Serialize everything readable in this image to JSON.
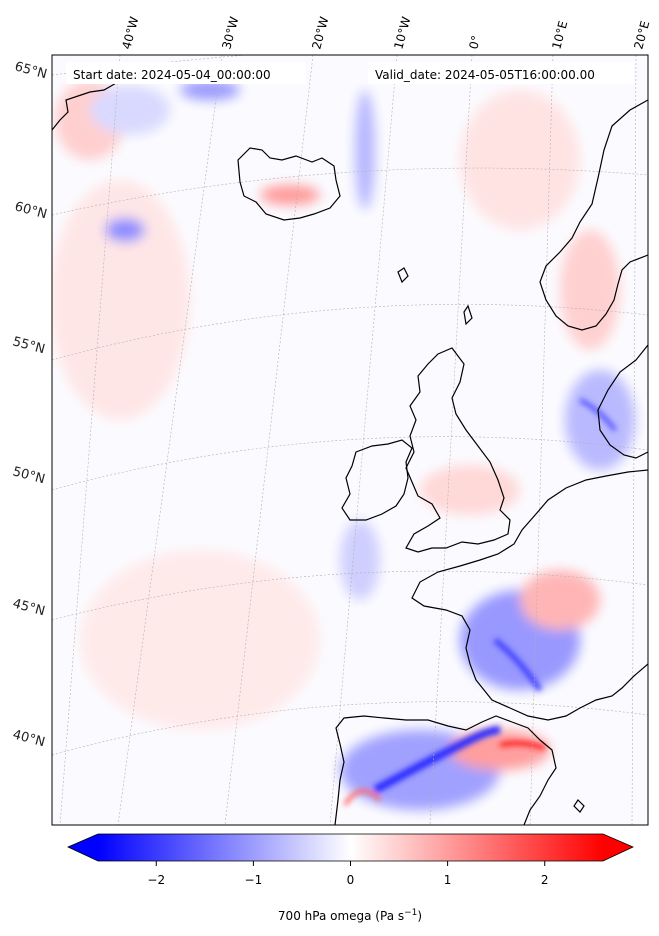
{
  "header": {
    "start_date": "Start date: 2024-05-04_00:00:00",
    "valid_date": "Valid_date: 2024-05-05T16:00:00.00"
  },
  "map": {
    "projection": "conic",
    "longitude_labels": [
      "40°W",
      "30°W",
      "20°W",
      "10°W",
      "0°",
      "10°E",
      "20°E"
    ],
    "latitude_labels": [
      "65°N",
      "60°N",
      "55°N",
      "50°N",
      "45°N",
      "40°N"
    ],
    "gridlines": true,
    "field": "700 hPa omega",
    "coast_color": "#000000",
    "negative_color": "#0000ff",
    "positive_color": "#ff0000"
  },
  "colorbar": {
    "label_main": "700 hPa omega (Pa s",
    "label_sup": "−1",
    "label_end": ")",
    "ticks": [
      "−2",
      "−1",
      "0",
      "1",
      "2"
    ],
    "range": [
      -2.6,
      2.6
    ],
    "extend": "both"
  }
}
